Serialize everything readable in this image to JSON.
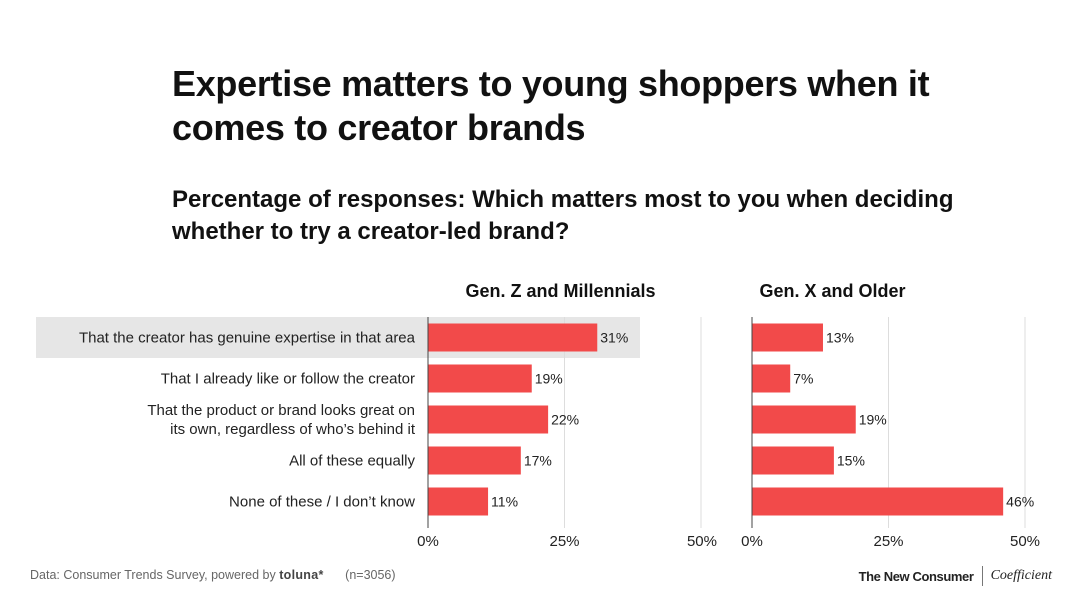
{
  "title": "Expertise matters to young shoppers when it comes to creator brands",
  "subtitle": "Percentage of responses: Which matters most to you when deciding whether to try a creator-led brand?",
  "chart_data": {
    "type": "bar",
    "orientation": "horizontal",
    "categories": [
      [
        "That the creator has genuine expertise in that area"
      ],
      [
        "That I already like or follow the creator"
      ],
      [
        "That the product or brand looks great on",
        "its own, regardless of who’s behind it"
      ],
      [
        "All of these equally"
      ],
      [
        "None of these / I don’t know"
      ]
    ],
    "highlighted_category_index": 0,
    "series": [
      {
        "name": "Gen. Z and Millennials",
        "values": [
          31,
          19,
          22,
          17,
          11
        ],
        "labels": [
          "31%",
          "19%",
          "22%",
          "17%",
          "11%"
        ]
      },
      {
        "name": "Gen. X and Older",
        "values": [
          13,
          7,
          19,
          15,
          46
        ],
        "labels": [
          "13%",
          "7%",
          "19%",
          "15%",
          "46%"
        ]
      }
    ],
    "xlim": [
      0,
      50
    ],
    "ticks": [
      0,
      25,
      50
    ],
    "tick_labels": [
      "0%",
      "25%",
      "50%"
    ],
    "grid": true,
    "bar_color": "#f24a4a",
    "highlight_color": "#e6e6e6"
  },
  "footer": {
    "source_prefix": "Data: Consumer Trends Survey, powered by",
    "source_brand": "toluna*",
    "sample": "(n=3056)",
    "logo_left": "The New Consumer",
    "logo_right": "Coefficient"
  }
}
